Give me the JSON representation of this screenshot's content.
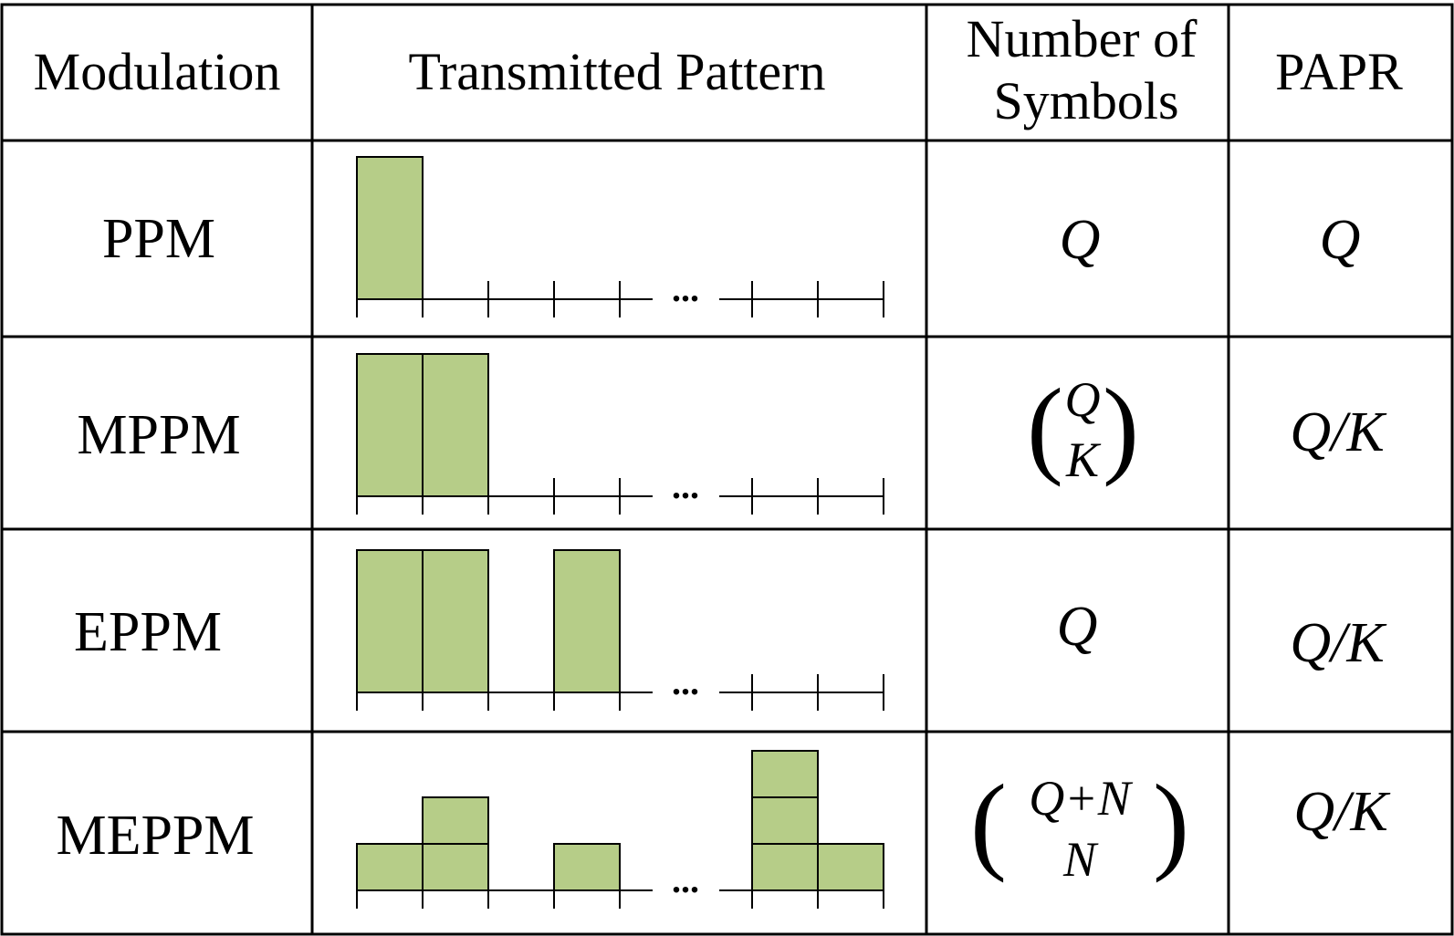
{
  "table": {
    "headers": {
      "modulation": "Modulation",
      "pattern": "Transmitted Pattern",
      "symbols_line1": "Number of",
      "symbols_line2": "Symbols",
      "papr": "PAPR"
    },
    "rows": [
      {
        "modulation": "PPM",
        "symbols": {
          "kind": "plain",
          "text": "Q"
        },
        "papr": "Q",
        "pattern": {
          "levels": [
            2,
            0,
            0,
            0,
            0,
            0,
            0,
            0
          ],
          "unit": "full"
        }
      },
      {
        "modulation": "MPPM",
        "symbols": {
          "kind": "binom",
          "top": "Q",
          "bottom": "K"
        },
        "papr": "Q/K",
        "pattern": {
          "levels": [
            2,
            2,
            0,
            0,
            0,
            0,
            0,
            0
          ],
          "unit": "full"
        }
      },
      {
        "modulation": "EPPM",
        "symbols": {
          "kind": "plain",
          "text": "Q"
        },
        "papr": "Q/K",
        "pattern": {
          "levels": [
            2,
            2,
            0,
            2,
            0,
            0,
            0,
            0
          ],
          "unit": "full"
        }
      },
      {
        "modulation": "MEPPM",
        "symbols": {
          "kind": "binom",
          "top": "Q+N",
          "bottom": "N"
        },
        "papr": "Q/K",
        "pattern": {
          "levels": [
            1,
            2,
            0,
            1,
            0,
            0,
            3,
            1
          ],
          "unit": "stack"
        }
      }
    ],
    "ellipsis": "...",
    "bar_color": "#b6cd88",
    "line_color": "#000000"
  }
}
